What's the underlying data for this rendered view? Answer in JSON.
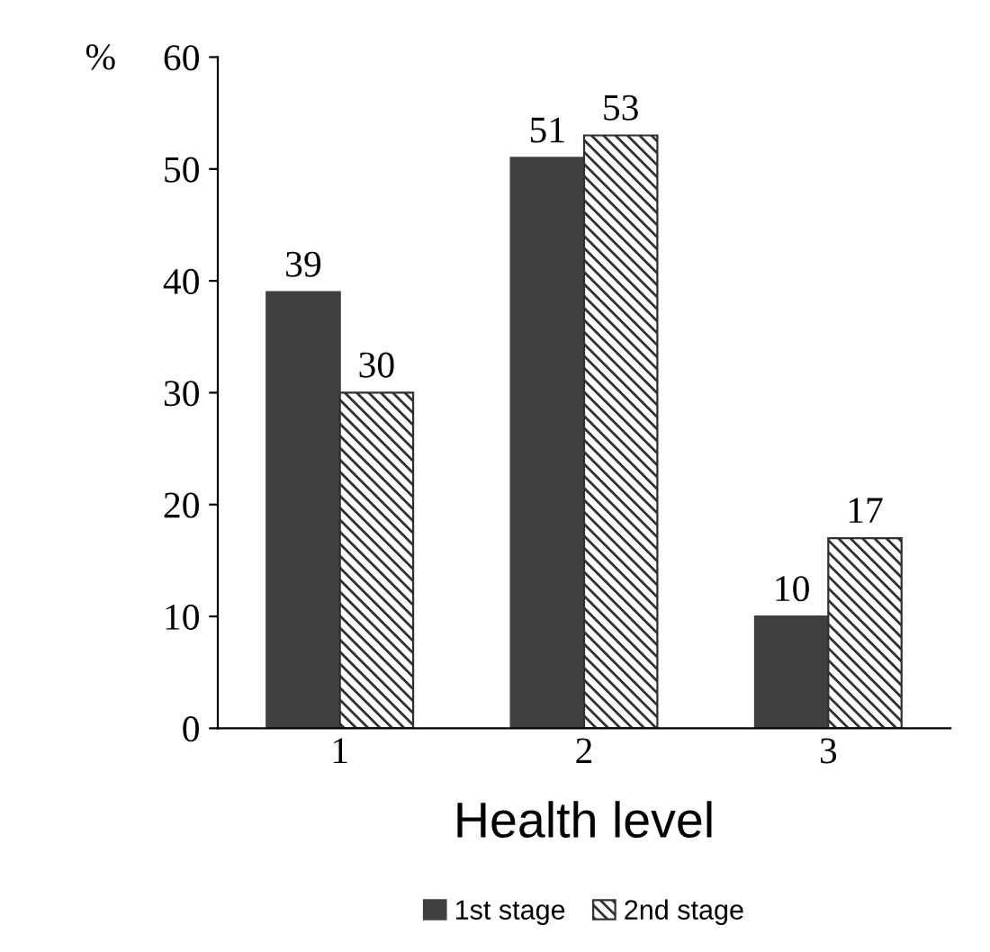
{
  "chart_data": {
    "type": "bar",
    "ylabel": "%",
    "xlabel": "Health level",
    "categories": [
      "1",
      "2",
      "3"
    ],
    "series": [
      {
        "name": "1st stage",
        "color": "#404040",
        "values": [
          39,
          51,
          10
        ]
      },
      {
        "name": "2nd stage",
        "color": "#303030",
        "values": [
          30,
          53,
          17
        ]
      }
    ],
    "ylim": [
      0,
      60
    ],
    "yticks": [
      0,
      10,
      20,
      30,
      40,
      50,
      60
    ],
    "data_labels": true,
    "legend": "bottom",
    "grid": false
  }
}
